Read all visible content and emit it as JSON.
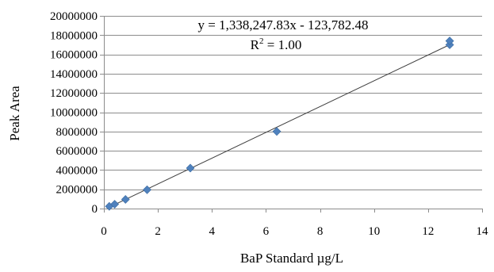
{
  "chart_data": {
    "type": "scatter",
    "xlabel": "BaP Standard µg/L",
    "ylabel": "Peak Area",
    "xlim": [
      0,
      14
    ],
    "ylim": [
      0,
      20000000
    ],
    "x_ticks": [
      0,
      2,
      4,
      6,
      8,
      10,
      12,
      14
    ],
    "y_ticks": [
      0,
      2000000,
      4000000,
      6000000,
      8000000,
      10000000,
      12000000,
      14000000,
      16000000,
      18000000,
      20000000
    ],
    "x_tick_labels": [
      "0",
      "2",
      "4",
      "6",
      "8",
      "10",
      "12",
      "14"
    ],
    "y_tick_labels": [
      "0",
      "2000000",
      "4000000",
      "6000000",
      "8000000",
      "10000000",
      "12000000",
      "14000000",
      "16000000",
      "18000000",
      "20000000"
    ],
    "grid": "horizontal",
    "series": [
      {
        "color": "#4F81BD",
        "marker": "diamond",
        "points": [
          {
            "x": 0.2,
            "y": 230000
          },
          {
            "x": 0.4,
            "y": 450000
          },
          {
            "x": 0.8,
            "y": 950000
          },
          {
            "x": 1.6,
            "y": 1950000
          },
          {
            "x": 3.2,
            "y": 4200000
          },
          {
            "x": 6.4,
            "y": 8000000
          },
          {
            "x": 12.8,
            "y": 17000000
          },
          {
            "x": 12.8,
            "y": 17400000
          }
        ]
      }
    ],
    "trendline": {
      "slope": 1338247.83,
      "intercept": -123782.48,
      "x_range": [
        0.2,
        12.8
      ],
      "color": "#404040",
      "equation_text": "y = 1,338,247.83x - 123,782.48",
      "r2_prefix": "R",
      "r2_sup": "2",
      "r2_suffix": " = 1.00"
    }
  }
}
